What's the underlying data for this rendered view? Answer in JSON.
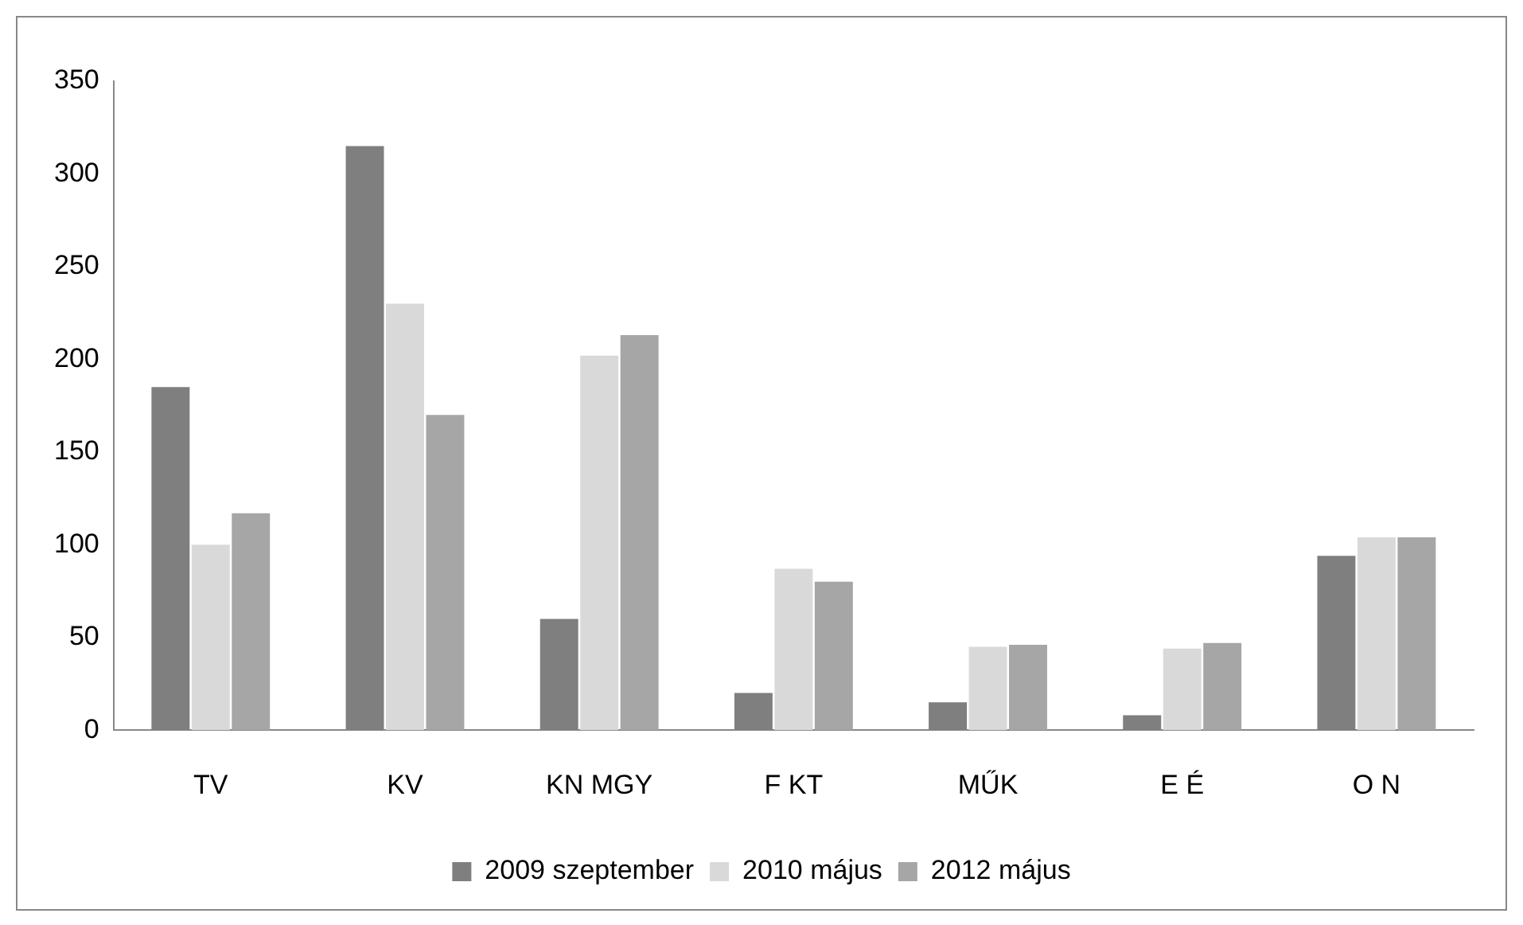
{
  "chart_data": {
    "type": "bar",
    "categories": [
      "TV",
      "KV",
      "KN MGY",
      "F KT",
      "MŰK",
      "E É",
      "O N"
    ],
    "series": [
      {
        "name": "2009 szeptember",
        "color": "#7f7f7f",
        "values": [
          185,
          315,
          60,
          20,
          15,
          8,
          94
        ]
      },
      {
        "name": "2010 május",
        "color": "#d9d9d9",
        "values": [
          100,
          230,
          202,
          87,
          45,
          44,
          104
        ]
      },
      {
        "name": "2012 május",
        "color": "#a6a6a6",
        "values": [
          117,
          170,
          213,
          80,
          46,
          47,
          104
        ]
      }
    ],
    "ylim": [
      0,
      350
    ],
    "yticks": [
      0,
      50,
      100,
      150,
      200,
      250,
      300,
      350
    ],
    "grid": false,
    "legend": "bottom"
  }
}
